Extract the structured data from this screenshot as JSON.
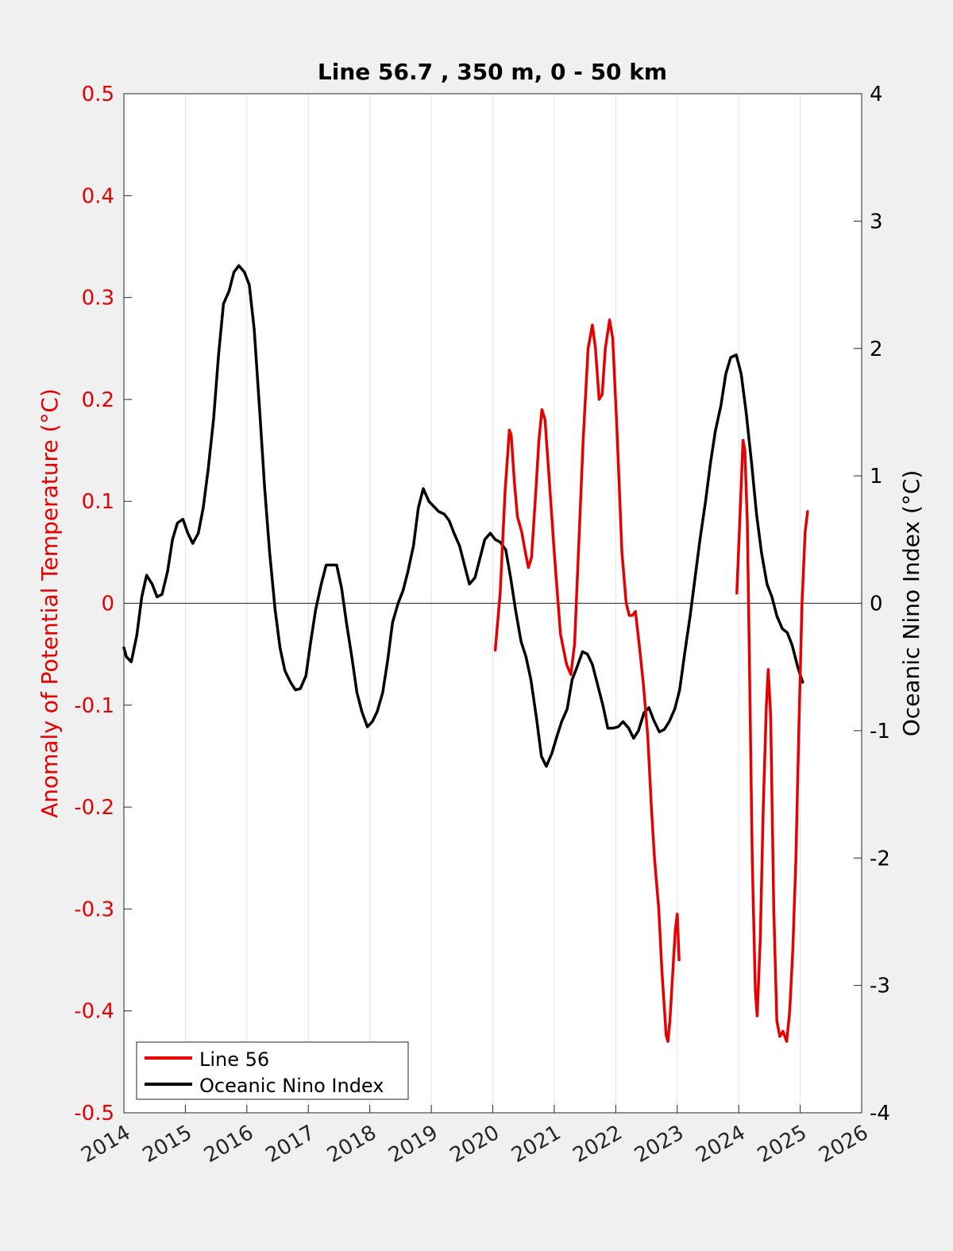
{
  "chart_data": {
    "type": "line",
    "title": "Line 56.7 , 350 m, 0 - 50 km",
    "xlabel": "",
    "ylabel_left": "Anomaly of Potential Temperature (°C)",
    "ylabel_right": "Oceanic Nino Index (°C)",
    "xlim": [
      2014,
      2026
    ],
    "ylim_left": [
      -0.5,
      0.5
    ],
    "ylim_right": [
      -4,
      4
    ],
    "x_ticks": [
      "2014",
      "2015",
      "2016",
      "2017",
      "2018",
      "2019",
      "2020",
      "2021",
      "2022",
      "2023",
      "2024",
      "2025",
      "2026"
    ],
    "y_left_ticks": [
      "0.5",
      "0.4",
      "0.3",
      "0.2",
      "0.1",
      "0",
      "-0.1",
      "-0.2",
      "-0.3",
      "-0.4",
      "-0.5"
    ],
    "y_right_ticks": [
      "4",
      "3",
      "2",
      "1",
      "0",
      "-1",
      "-2",
      "-3",
      "-4"
    ],
    "grid": "vertical at each year",
    "legend_position": "bottom-left",
    "colors": {
      "line56": "#e60000",
      "oni": "#000000",
      "left_axis": "#e60000",
      "right_axis": "#000000"
    },
    "series": [
      {
        "name": "Line 56",
        "axis": "left",
        "segments": [
          [
            [
              2020.04,
              -0.046
            ],
            [
              2020.12,
              0.01
            ],
            [
              2020.2,
              0.11
            ],
            [
              2020.27,
              0.17
            ],
            [
              2020.3,
              0.165
            ],
            [
              2020.35,
              0.12
            ],
            [
              2020.4,
              0.085
            ],
            [
              2020.47,
              0.07
            ],
            [
              2020.53,
              0.05
            ],
            [
              2020.58,
              0.035
            ],
            [
              2020.63,
              0.045
            ],
            [
              2020.7,
              0.11
            ],
            [
              2020.75,
              0.16
            ],
            [
              2020.8,
              0.19
            ],
            [
              2020.85,
              0.18
            ],
            [
              2020.92,
              0.12
            ],
            [
              2021.0,
              0.05
            ],
            [
              2021.1,
              -0.03
            ],
            [
              2021.2,
              -0.06
            ],
            [
              2021.27,
              -0.07
            ],
            [
              2021.33,
              -0.04
            ],
            [
              2021.4,
              0.06
            ],
            [
              2021.47,
              0.16
            ],
            [
              2021.55,
              0.25
            ],
            [
              2021.62,
              0.273
            ],
            [
              2021.67,
              0.25
            ],
            [
              2021.73,
              0.2
            ],
            [
              2021.78,
              0.205
            ],
            [
              2021.83,
              0.25
            ],
            [
              2021.9,
              0.278
            ],
            [
              2021.95,
              0.26
            ],
            [
              2022.02,
              0.17
            ],
            [
              2022.1,
              0.05
            ],
            [
              2022.17,
              0.0
            ],
            [
              2022.22,
              -0.012
            ],
            [
              2022.27,
              -0.012
            ],
            [
              2022.32,
              -0.008
            ],
            [
              2022.38,
              -0.04
            ],
            [
              2022.45,
              -0.08
            ],
            [
              2022.52,
              -0.13
            ],
            [
              2022.58,
              -0.2
            ],
            [
              2022.63,
              -0.25
            ],
            [
              2022.7,
              -0.3
            ],
            [
              2022.75,
              -0.36
            ],
            [
              2022.82,
              -0.424
            ],
            [
              2022.85,
              -0.43
            ],
            [
              2022.88,
              -0.41
            ],
            [
              2022.93,
              -0.36
            ],
            [
              2022.97,
              -0.32
            ],
            [
              2023.0,
              -0.305
            ],
            [
              2023.03,
              -0.35
            ]
          ],
          [
            [
              2023.97,
              0.01
            ],
            [
              2024.03,
              0.1
            ],
            [
              2024.07,
              0.16
            ],
            [
              2024.1,
              0.15
            ],
            [
              2024.14,
              0.08
            ],
            [
              2024.18,
              -0.08
            ],
            [
              2024.22,
              -0.25
            ],
            [
              2024.27,
              -0.38
            ],
            [
              2024.3,
              -0.405
            ],
            [
              2024.35,
              -0.33
            ],
            [
              2024.4,
              -0.2
            ],
            [
              2024.45,
              -0.1
            ],
            [
              2024.48,
              -0.065
            ],
            [
              2024.52,
              -0.11
            ],
            [
              2024.57,
              -0.3
            ],
            [
              2024.62,
              -0.41
            ],
            [
              2024.67,
              -0.425
            ],
            [
              2024.72,
              -0.42
            ],
            [
              2024.78,
              -0.43
            ],
            [
              2024.83,
              -0.4
            ],
            [
              2024.88,
              -0.34
            ],
            [
              2024.93,
              -0.25
            ],
            [
              2024.98,
              -0.12
            ],
            [
              2025.03,
              0.0
            ],
            [
              2025.08,
              0.07
            ],
            [
              2025.12,
              0.09
            ]
          ]
        ]
      },
      {
        "name": "Oceanic Nino Index",
        "axis": "right",
        "segments": [
          [
            [
              2014.0,
              -0.35
            ],
            [
              2014.04,
              -0.42
            ],
            [
              2014.12,
              -0.46
            ],
            [
              2014.21,
              -0.25
            ],
            [
              2014.29,
              0.05
            ],
            [
              2014.37,
              0.22
            ],
            [
              2014.46,
              0.15
            ],
            [
              2014.54,
              0.05
            ],
            [
              2014.62,
              0.07
            ],
            [
              2014.71,
              0.25
            ],
            [
              2014.79,
              0.5
            ],
            [
              2014.87,
              0.63
            ],
            [
              2014.96,
              0.66
            ],
            [
              2015.04,
              0.55
            ],
            [
              2015.12,
              0.47
            ],
            [
              2015.21,
              0.55
            ],
            [
              2015.29,
              0.75
            ],
            [
              2015.37,
              1.05
            ],
            [
              2015.46,
              1.45
            ],
            [
              2015.54,
              1.95
            ],
            [
              2015.62,
              2.35
            ],
            [
              2015.71,
              2.45
            ],
            [
              2015.79,
              2.6
            ],
            [
              2015.87,
              2.65
            ],
            [
              2015.96,
              2.6
            ],
            [
              2016.04,
              2.5
            ],
            [
              2016.12,
              2.15
            ],
            [
              2016.21,
              1.5
            ],
            [
              2016.29,
              0.9
            ],
            [
              2016.37,
              0.4
            ],
            [
              2016.46,
              -0.05
            ],
            [
              2016.54,
              -0.35
            ],
            [
              2016.62,
              -0.53
            ],
            [
              2016.71,
              -0.62
            ],
            [
              2016.79,
              -0.68
            ],
            [
              2016.87,
              -0.67
            ],
            [
              2016.96,
              -0.57
            ],
            [
              2017.04,
              -0.3
            ],
            [
              2017.12,
              -0.05
            ],
            [
              2017.21,
              0.15
            ],
            [
              2017.29,
              0.3
            ],
            [
              2017.37,
              0.3
            ],
            [
              2017.46,
              0.3
            ],
            [
              2017.54,
              0.12
            ],
            [
              2017.62,
              -0.15
            ],
            [
              2017.71,
              -0.43
            ],
            [
              2017.79,
              -0.7
            ],
            [
              2017.87,
              -0.85
            ],
            [
              2017.96,
              -0.97
            ],
            [
              2018.04,
              -0.93
            ],
            [
              2018.12,
              -0.85
            ],
            [
              2018.21,
              -0.7
            ],
            [
              2018.29,
              -0.45
            ],
            [
              2018.37,
              -0.15
            ],
            [
              2018.46,
              0.0
            ],
            [
              2018.54,
              0.1
            ],
            [
              2018.62,
              0.25
            ],
            [
              2018.71,
              0.45
            ],
            [
              2018.79,
              0.75
            ],
            [
              2018.87,
              0.9
            ],
            [
              2018.96,
              0.8
            ],
            [
              2019.04,
              0.76
            ],
            [
              2019.12,
              0.72
            ],
            [
              2019.21,
              0.7
            ],
            [
              2019.29,
              0.65
            ],
            [
              2019.37,
              0.55
            ],
            [
              2019.46,
              0.45
            ],
            [
              2019.54,
              0.3
            ],
            [
              2019.62,
              0.15
            ],
            [
              2019.71,
              0.2
            ],
            [
              2019.79,
              0.35
            ],
            [
              2019.87,
              0.5
            ],
            [
              2019.96,
              0.55
            ],
            [
              2020.04,
              0.5
            ],
            [
              2020.12,
              0.48
            ],
            [
              2020.21,
              0.42
            ],
            [
              2020.29,
              0.2
            ],
            [
              2020.37,
              -0.05
            ],
            [
              2020.46,
              -0.3
            ],
            [
              2020.54,
              -0.42
            ],
            [
              2020.62,
              -0.6
            ],
            [
              2020.71,
              -0.9
            ],
            [
              2020.79,
              -1.2
            ],
            [
              2020.87,
              -1.28
            ],
            [
              2020.96,
              -1.18
            ],
            [
              2021.04,
              -1.05
            ],
            [
              2021.12,
              -0.93
            ],
            [
              2021.21,
              -0.83
            ],
            [
              2021.29,
              -0.6
            ],
            [
              2021.37,
              -0.5
            ],
            [
              2021.46,
              -0.38
            ],
            [
              2021.54,
              -0.4
            ],
            [
              2021.62,
              -0.48
            ],
            [
              2021.71,
              -0.65
            ],
            [
              2021.79,
              -0.8
            ],
            [
              2021.87,
              -0.98
            ],
            [
              2021.96,
              -0.98
            ],
            [
              2022.04,
              -0.97
            ],
            [
              2022.12,
              -0.93
            ],
            [
              2022.21,
              -0.98
            ],
            [
              2022.29,
              -1.06
            ],
            [
              2022.37,
              -1.0
            ],
            [
              2022.46,
              -0.86
            ],
            [
              2022.54,
              -0.82
            ],
            [
              2022.62,
              -0.92
            ],
            [
              2022.71,
              -1.01
            ],
            [
              2022.79,
              -0.99
            ],
            [
              2022.87,
              -0.93
            ],
            [
              2022.96,
              -0.83
            ],
            [
              2023.04,
              -0.68
            ],
            [
              2023.12,
              -0.4
            ],
            [
              2023.21,
              -0.1
            ],
            [
              2023.29,
              0.2
            ],
            [
              2023.37,
              0.5
            ],
            [
              2023.46,
              0.8
            ],
            [
              2023.54,
              1.1
            ],
            [
              2023.62,
              1.35
            ],
            [
              2023.71,
              1.55
            ],
            [
              2023.79,
              1.8
            ],
            [
              2023.87,
              1.93
            ],
            [
              2023.96,
              1.95
            ],
            [
              2024.04,
              1.8
            ],
            [
              2024.12,
              1.5
            ],
            [
              2024.21,
              1.1
            ],
            [
              2024.29,
              0.7
            ],
            [
              2024.37,
              0.4
            ],
            [
              2024.46,
              0.15
            ],
            [
              2024.54,
              0.05
            ],
            [
              2024.62,
              -0.1
            ],
            [
              2024.71,
              -0.2
            ],
            [
              2024.79,
              -0.23
            ],
            [
              2024.87,
              -0.33
            ],
            [
              2024.96,
              -0.5
            ],
            [
              2025.04,
              -0.62
            ]
          ]
        ]
      }
    ]
  }
}
